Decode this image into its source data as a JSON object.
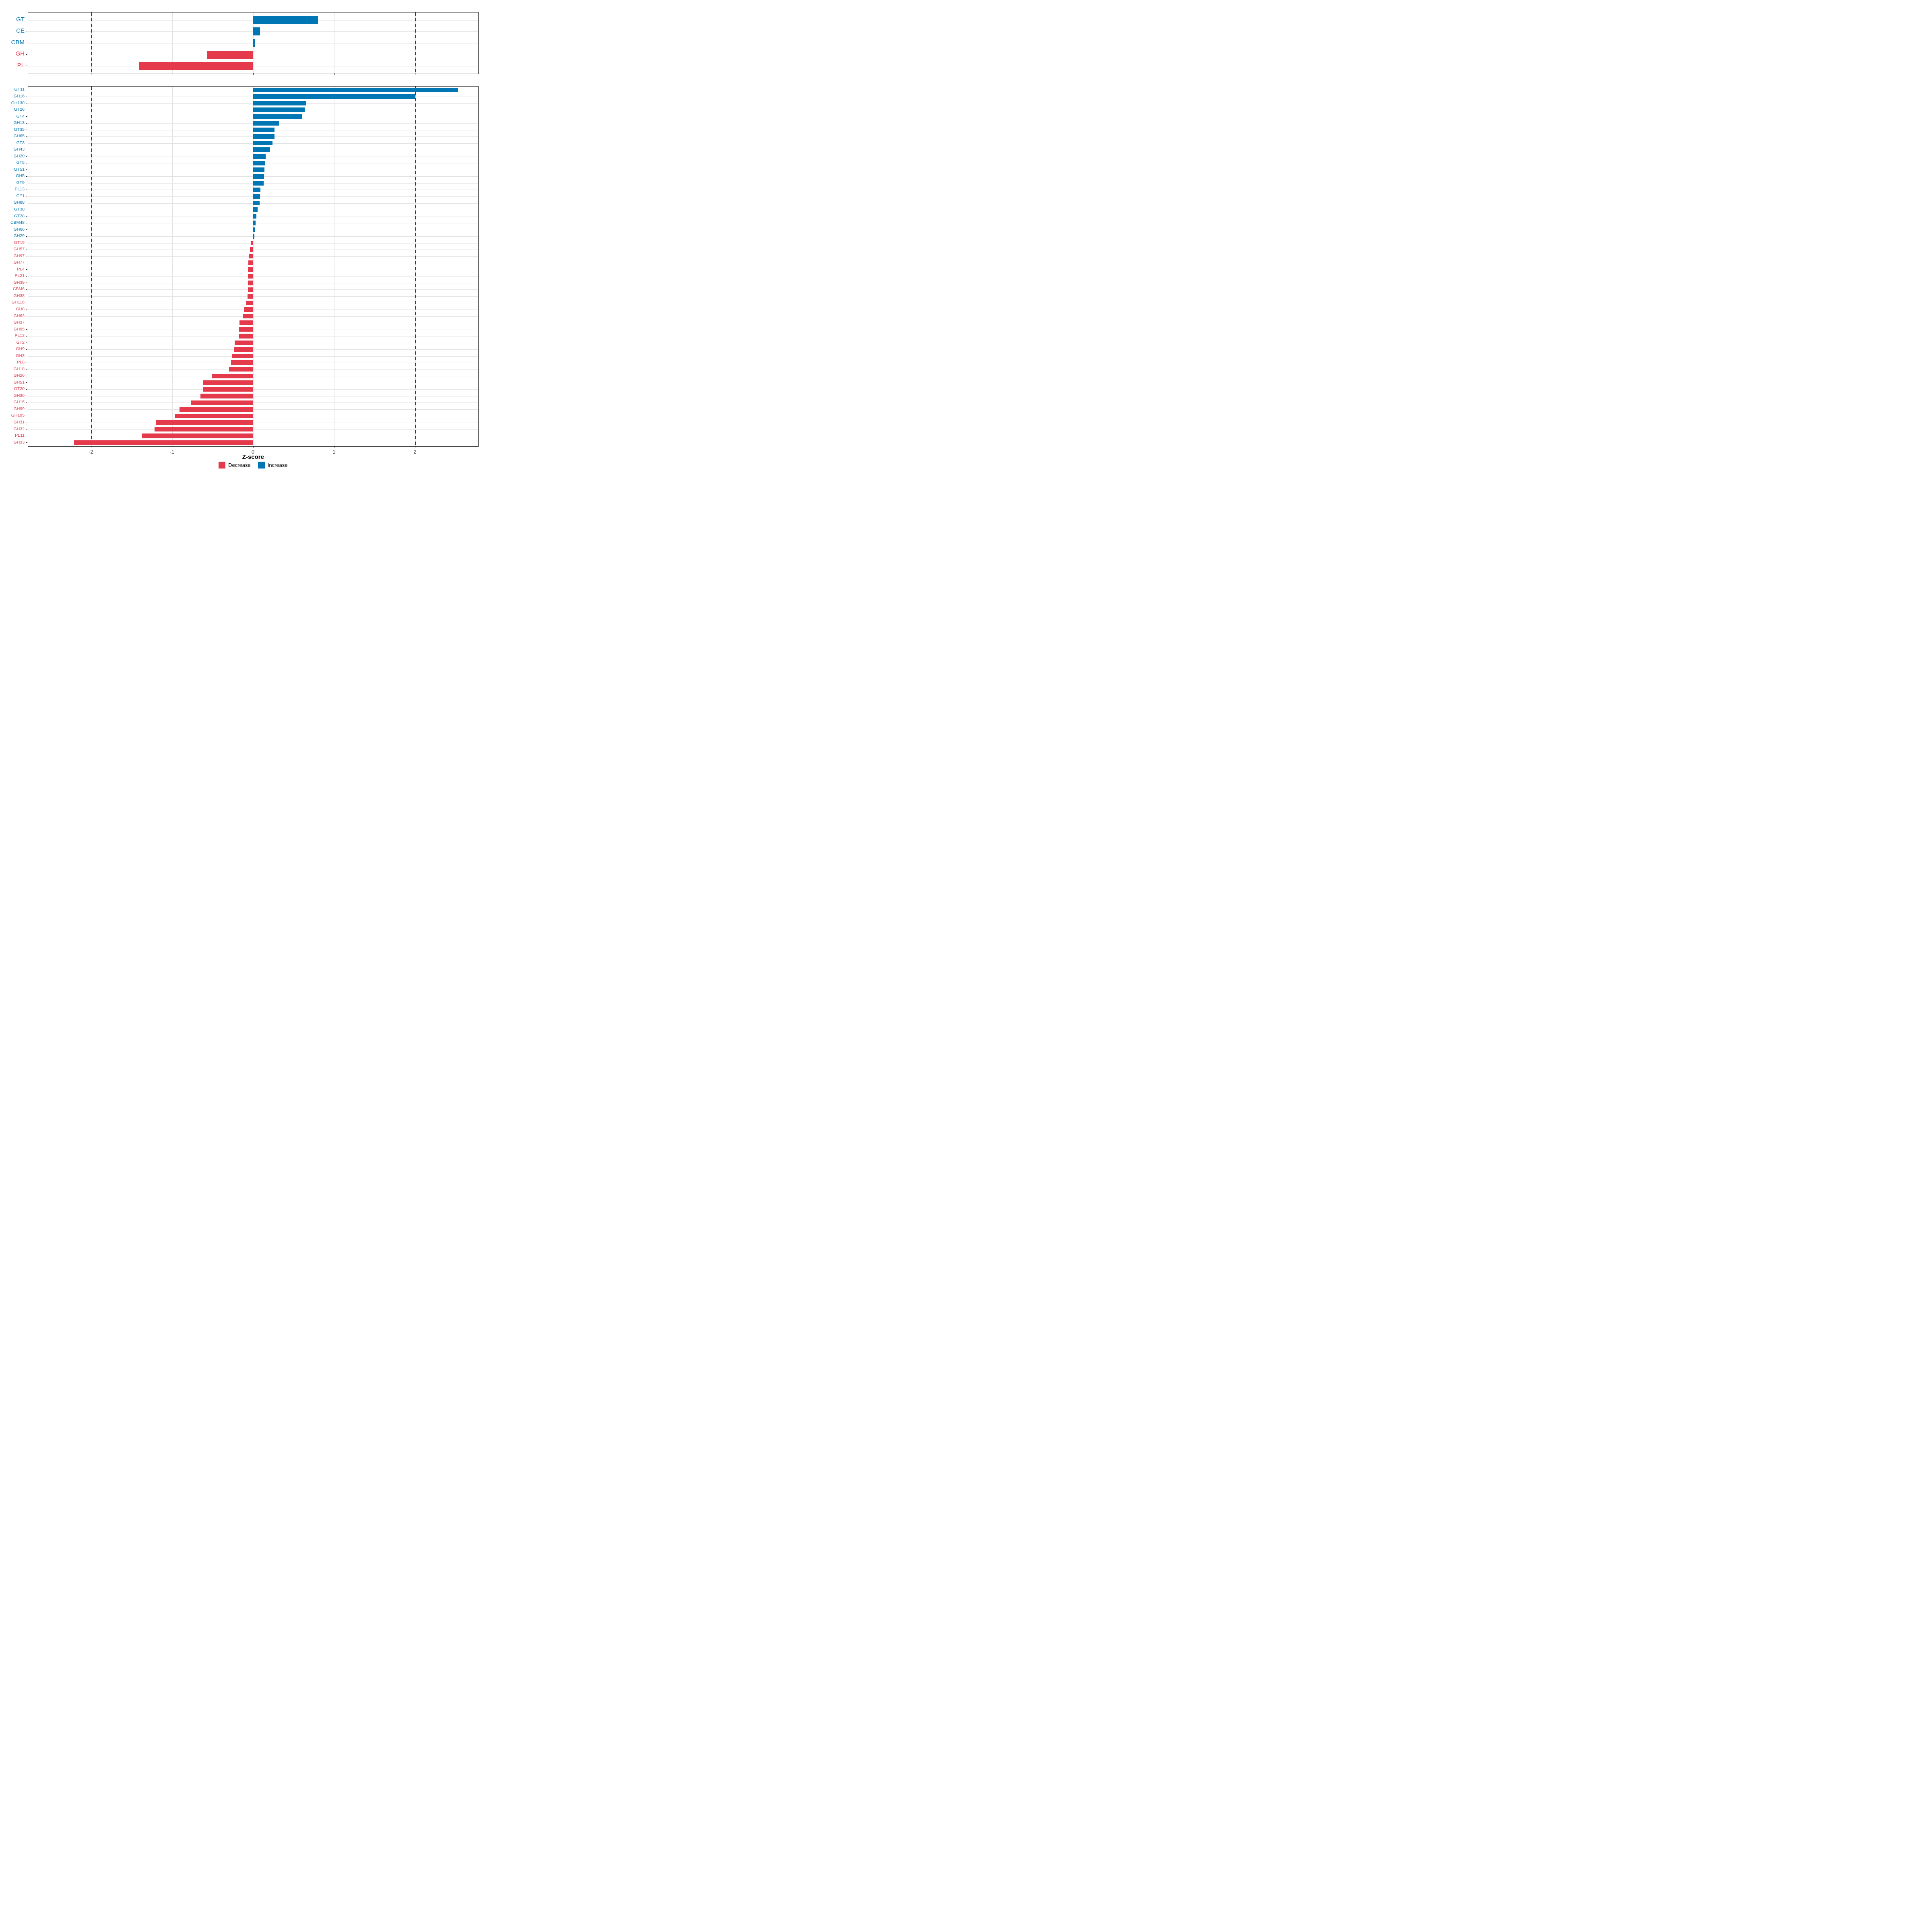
{
  "axis": {
    "xlabel": "Z-score",
    "x_tick_labels": [
      "-2",
      "-1",
      "0",
      "1",
      "2"
    ],
    "x_tick_values": [
      -2,
      -1,
      0,
      1,
      2
    ]
  },
  "legend": {
    "items": [
      {
        "label": "Decrease",
        "color": "#e43a4c"
      },
      {
        "label": "Increase",
        "color": "#0076b4"
      }
    ]
  },
  "colors": {
    "increase": "#0076b4",
    "decrease": "#e43a4c",
    "gridline": "#e2e2e2",
    "dashed_line": "#3c3c3c",
    "panel_border": "#1f1f1f",
    "tick_label": "#4d4d4d",
    "background": "#ffffff"
  },
  "chart_data": [
    {
      "type": "bar",
      "orientation": "horizontal",
      "panel": "top",
      "categories": [
        "GT",
        "CE",
        "CBM",
        "GH",
        "PL"
      ],
      "values": [
        0.8,
        0.083,
        0.02,
        -0.57,
        -1.41
      ],
      "xlim": [
        -2.78,
        2.78
      ],
      "x_ticks": [
        -2,
        -1,
        0,
        1,
        2
      ],
      "reference_lines": [
        -2,
        2
      ],
      "legend_position": "none",
      "grid": "major-x, one horizontal line per category"
    },
    {
      "type": "bar",
      "orientation": "horizontal",
      "panel": "bottom",
      "xlabel": "Z-score",
      "categories": [
        "GT11",
        "GH16",
        "GH130",
        "GT26",
        "GT4",
        "GH13",
        "GT35",
        "GH65",
        "GT3",
        "GH43",
        "GH20",
        "GT5",
        "GT51",
        "GH5",
        "GT9",
        "PL13",
        "CE1",
        "GH88",
        "GT30",
        "GT28",
        "CBM48",
        "GH66",
        "GH29",
        "GT19",
        "GH57",
        "GH97",
        "GH77",
        "PL4",
        "PL21",
        "GH39",
        "CBM6",
        "GH38",
        "GH116",
        "GH8",
        "GH63",
        "GH37",
        "GH95",
        "PL12",
        "GT2",
        "GH9",
        "GH3",
        "PL8",
        "GH18",
        "GH26",
        "GH51",
        "GT20",
        "GH30",
        "GH15",
        "GH99",
        "GH105",
        "GH31",
        "GH32",
        "PL11",
        "GH33"
      ],
      "values": [
        2.53,
        2.0,
        0.655,
        0.635,
        0.6,
        0.32,
        0.265,
        0.262,
        0.24,
        0.21,
        0.155,
        0.145,
        0.14,
        0.135,
        0.13,
        0.088,
        0.085,
        0.078,
        0.056,
        0.04,
        0.03,
        0.02,
        0.015,
        -0.025,
        -0.04,
        -0.05,
        -0.062,
        -0.064,
        -0.065,
        -0.066,
        -0.067,
        -0.068,
        -0.088,
        -0.115,
        -0.13,
        -0.167,
        -0.175,
        -0.18,
        -0.227,
        -0.237,
        -0.263,
        -0.272,
        -0.3,
        -0.505,
        -0.615,
        -0.623,
        -0.653,
        -0.77,
        -0.91,
        -0.97,
        -1.2,
        -1.22,
        -1.37,
        -2.21
      ],
      "xlim": [
        -2.78,
        2.78
      ],
      "x_ticks": [
        -2,
        -1,
        0,
        1,
        2
      ],
      "reference_lines": [
        -2,
        2
      ],
      "legend_position": "bottom",
      "grid": "major-x, one horizontal line per category"
    }
  ]
}
